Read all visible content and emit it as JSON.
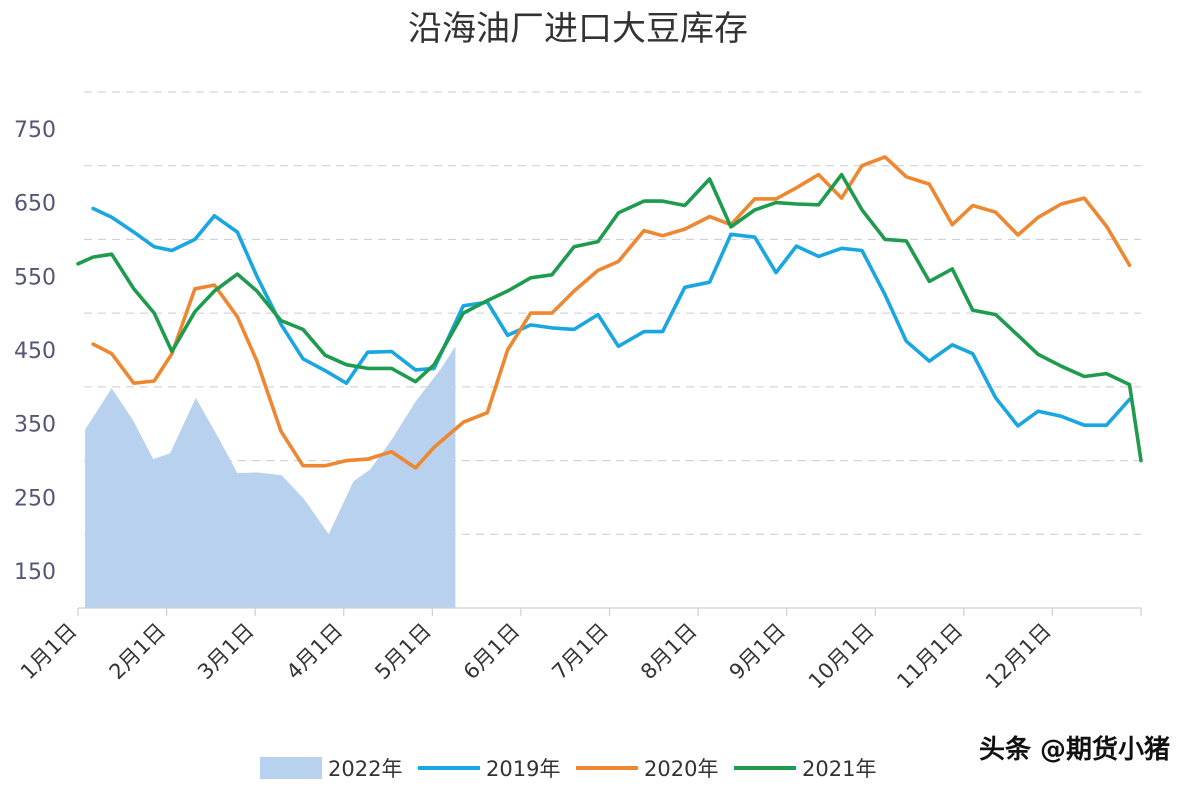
{
  "chart_data": {
    "type": "line",
    "title": "沿海油厂进口大豆库存",
    "ylim": [
      100,
      800
    ],
    "yticks": [
      150,
      250,
      350,
      450,
      550,
      650,
      750
    ],
    "gridlines": [
      200,
      300,
      400,
      500,
      600,
      700,
      800
    ],
    "x_domain": [
      0,
      12
    ],
    "xticks": [
      {
        "label": "1月1日",
        "x": 0
      },
      {
        "label": "2月1日",
        "x": 1
      },
      {
        "label": "3月1日",
        "x": 2
      },
      {
        "label": "4月1日",
        "x": 3
      },
      {
        "label": "5月1日",
        "x": 4
      },
      {
        "label": "6月1日",
        "x": 5
      },
      {
        "label": "7月1日",
        "x": 6
      },
      {
        "label": "8月1日",
        "x": 7
      },
      {
        "label": "9月1日",
        "x": 8
      },
      {
        "label": "10月1日",
        "x": 9
      },
      {
        "label": "11月1日",
        "x": 10
      },
      {
        "label": "12月1日",
        "x": 11
      }
    ],
    "legend_position": "bottom",
    "series": [
      {
        "name": "2022年",
        "kind": "area",
        "color": "#b8d1ee",
        "x": [
          0.08,
          0.38,
          0.62,
          0.85,
          1.04,
          1.33,
          1.59,
          1.8,
          2.02,
          2.3,
          2.55,
          2.83,
          3.11,
          3.3,
          3.55,
          3.81,
          4.1,
          4.26
        ],
        "y": [
          342,
          398,
          355,
          302,
          310,
          385,
          330,
          283,
          284,
          280,
          248,
          200,
          272,
          288,
          330,
          380,
          425,
          455
        ]
      },
      {
        "name": "2019年",
        "kind": "line",
        "color": "#1aa6e0",
        "x": [
          0.17,
          0.38,
          0.63,
          0.86,
          1.06,
          1.32,
          1.54,
          1.8,
          2.02,
          2.29,
          2.54,
          2.79,
          3.03,
          3.27,
          3.54,
          3.81,
          4.02,
          4.35,
          4.62,
          4.85,
          5.11,
          5.35,
          5.6,
          5.87,
          6.1,
          6.39,
          6.6,
          6.85,
          7.13,
          7.37,
          7.64,
          7.88,
          8.11,
          8.36,
          8.62,
          8.85,
          9.11,
          9.35,
          9.61,
          9.87,
          10.1,
          10.36,
          10.61,
          10.84,
          11.1,
          11.36,
          11.61,
          11.87
        ],
        "y": [
          642,
          630,
          610,
          590,
          585,
          600,
          632,
          610,
          550,
          485,
          438,
          422,
          405,
          447,
          448,
          423,
          425,
          510,
          515,
          470,
          484,
          480,
          478,
          498,
          455,
          475,
          475,
          535,
          542,
          607,
          603,
          555,
          591,
          577,
          588,
          585,
          525,
          462,
          435,
          457,
          445,
          385,
          347,
          367,
          360,
          348,
          348,
          383
        ]
      },
      {
        "name": "2020年",
        "kind": "line",
        "color": "#ee8730",
        "x": [
          0.17,
          0.38,
          0.63,
          0.86,
          1.06,
          1.32,
          1.54,
          1.8,
          2.02,
          2.29,
          2.54,
          2.79,
          3.03,
          3.27,
          3.54,
          3.81,
          4.02,
          4.35,
          4.62,
          4.85,
          5.11,
          5.35,
          5.6,
          5.87,
          6.1,
          6.39,
          6.6,
          6.85,
          7.13,
          7.37,
          7.64,
          7.88,
          8.11,
          8.36,
          8.62,
          8.85,
          9.11,
          9.35,
          9.61,
          9.87,
          10.1,
          10.36,
          10.61,
          10.84,
          11.1,
          11.36,
          11.61,
          11.87
        ],
        "y": [
          458,
          445,
          405,
          408,
          445,
          533,
          538,
          495,
          435,
          340,
          293,
          293,
          300,
          302,
          312,
          290,
          318,
          352,
          365,
          450,
          500,
          500,
          530,
          558,
          570,
          612,
          605,
          614,
          631,
          620,
          655,
          655,
          670,
          688,
          656,
          700,
          712,
          685,
          675,
          620,
          646,
          637,
          606,
          630,
          648,
          656,
          618,
          565
        ]
      },
      {
        "name": "2021年",
        "kind": "line",
        "color": "#1f9b4e",
        "x": [
          0,
          0.17,
          0.38,
          0.63,
          0.86,
          1.06,
          1.32,
          1.54,
          1.8,
          2.02,
          2.29,
          2.54,
          2.79,
          3.03,
          3.27,
          3.54,
          3.81,
          4.02,
          4.35,
          4.62,
          4.85,
          5.11,
          5.35,
          5.6,
          5.87,
          6.1,
          6.39,
          6.6,
          6.85,
          7.13,
          7.37,
          7.64,
          7.88,
          8.11,
          8.36,
          8.62,
          8.85,
          9.11,
          9.35,
          9.61,
          9.87,
          10.1,
          10.36,
          10.61,
          10.84,
          11.1,
          11.36,
          11.61,
          11.87,
          12
        ],
        "y": [
          567,
          576,
          580,
          533,
          500,
          448,
          502,
          530,
          553,
          530,
          490,
          478,
          443,
          430,
          425,
          425,
          407,
          430,
          500,
          517,
          530,
          548,
          552,
          590,
          597,
          636,
          652,
          652,
          646,
          682,
          617,
          640,
          650,
          648,
          647,
          688,
          640,
          600,
          598,
          543,
          560,
          504,
          498,
          470,
          444,
          428,
          414,
          418,
          403,
          300
        ]
      }
    ],
    "watermark": "头条 @期货小猪"
  }
}
